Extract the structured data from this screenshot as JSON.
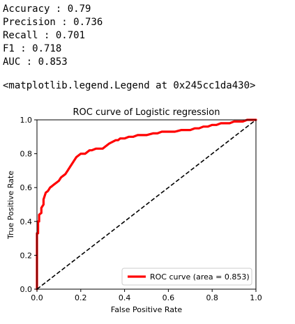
{
  "metrics": [
    {
      "label": "Accuracy",
      "value": "0.79"
    },
    {
      "label": "Precision",
      "value": "0.736"
    },
    {
      "label": "Recall",
      "value": "0.701"
    },
    {
      "label": "F1",
      "value": "0.718"
    },
    {
      "label": "AUC",
      "value": "0.853"
    }
  ],
  "repr_output": "<matplotlib.legend.Legend at 0x245cc1da430>",
  "chart_data": {
    "type": "line",
    "title": "ROC curve of Logistic regression",
    "xlabel": "False Positive Rate",
    "ylabel": "True Positive Rate",
    "xlim": [
      0.0,
      1.0
    ],
    "ylim": [
      0.0,
      1.0
    ],
    "xticks": [
      "0.0",
      "0.2",
      "0.4",
      "0.6",
      "0.8",
      "1.0"
    ],
    "yticks": [
      "0.0",
      "0.2",
      "0.4",
      "0.6",
      "0.8",
      "1.0"
    ],
    "grid": false,
    "legend_position": "lower-right",
    "series": [
      {
        "name": "ROC curve (area = 0.853)",
        "color": "#ff0000",
        "style": "solid",
        "x": [
          0.0,
          0.0,
          0.005,
          0.005,
          0.01,
          0.01,
          0.02,
          0.02,
          0.03,
          0.03,
          0.04,
          0.05,
          0.06,
          0.07,
          0.08,
          0.09,
          0.1,
          0.11,
          0.12,
          0.13,
          0.14,
          0.15,
          0.16,
          0.17,
          0.18,
          0.19,
          0.2,
          0.22,
          0.24,
          0.25,
          0.27,
          0.3,
          0.31,
          0.33,
          0.36,
          0.37,
          0.38,
          0.4,
          0.42,
          0.44,
          0.46,
          0.5,
          0.53,
          0.55,
          0.57,
          0.6,
          0.63,
          0.66,
          0.7,
          0.72,
          0.74,
          0.76,
          0.78,
          0.8,
          0.82,
          0.84,
          0.86,
          0.88,
          0.9,
          0.92,
          0.94,
          0.96,
          0.98,
          1.0
        ],
        "y": [
          0.0,
          0.33,
          0.33,
          0.4,
          0.4,
          0.44,
          0.45,
          0.48,
          0.5,
          0.53,
          0.57,
          0.58,
          0.6,
          0.61,
          0.62,
          0.63,
          0.64,
          0.66,
          0.67,
          0.68,
          0.7,
          0.72,
          0.74,
          0.76,
          0.78,
          0.79,
          0.8,
          0.8,
          0.82,
          0.82,
          0.83,
          0.83,
          0.84,
          0.86,
          0.88,
          0.88,
          0.89,
          0.89,
          0.9,
          0.9,
          0.91,
          0.91,
          0.92,
          0.92,
          0.93,
          0.93,
          0.93,
          0.94,
          0.94,
          0.95,
          0.95,
          0.96,
          0.96,
          0.97,
          0.97,
          0.98,
          0.98,
          0.98,
          0.99,
          0.99,
          0.99,
          1.0,
          1.0,
          1.0
        ]
      },
      {
        "name": "",
        "color": "#000000",
        "style": "dashed",
        "x": [
          0.0,
          1.0
        ],
        "y": [
          0.0,
          1.0
        ]
      }
    ]
  }
}
